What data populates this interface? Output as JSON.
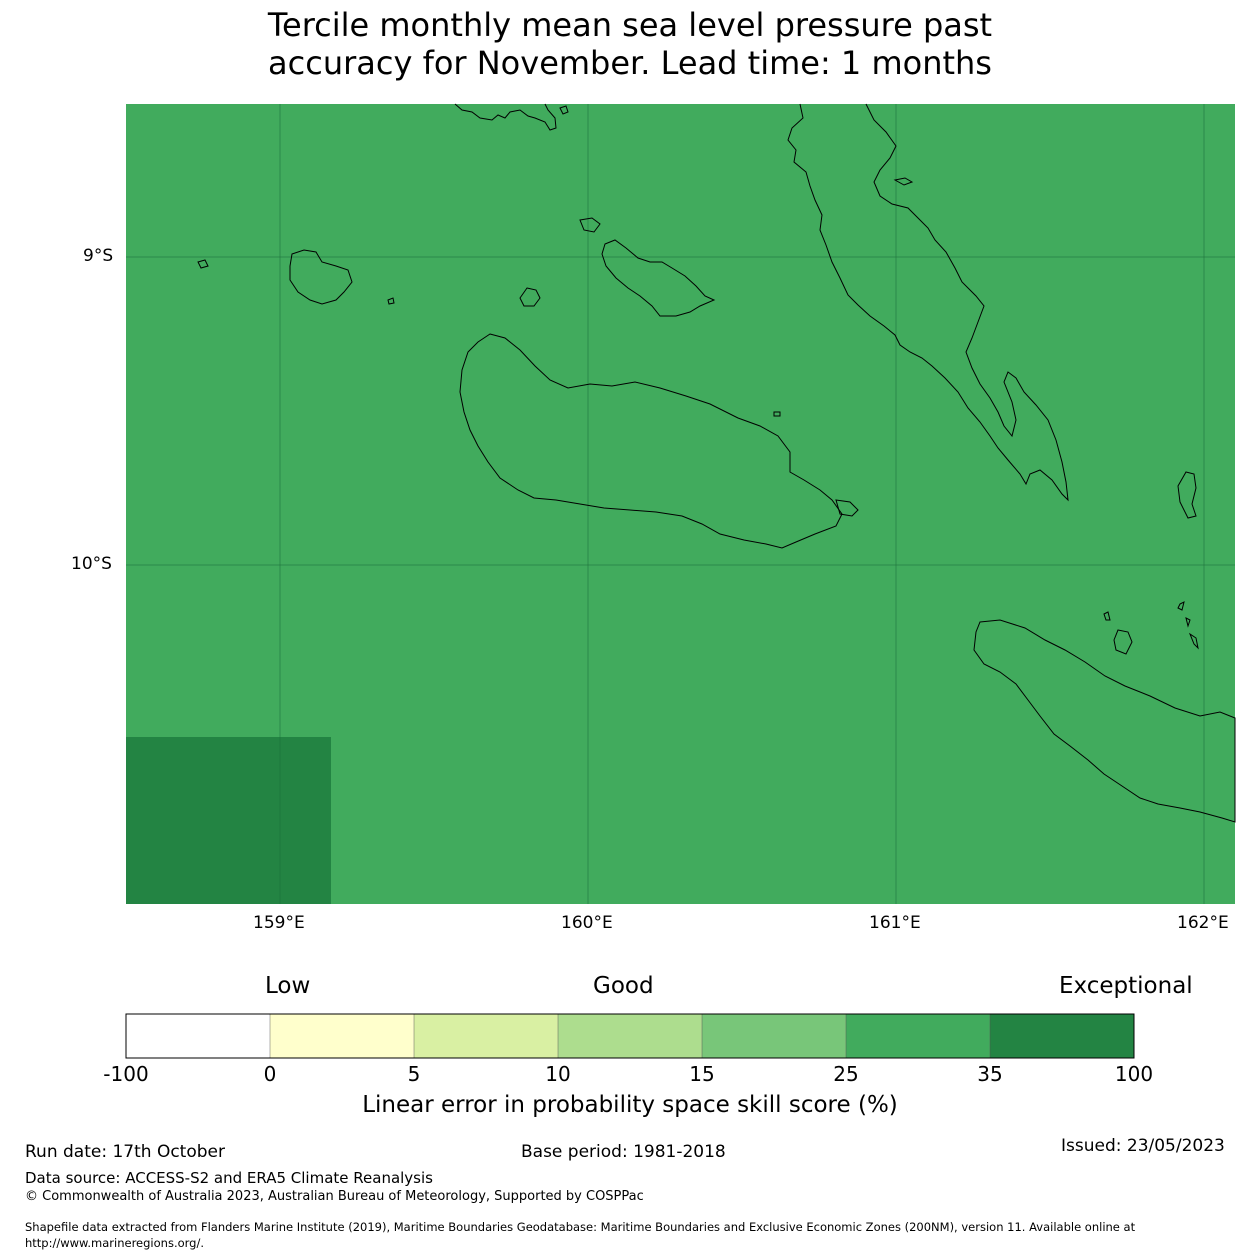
{
  "title_line1": "Tercile monthly mean sea level pressure past",
  "title_line2": "accuracy for November. Lead time: 1 months",
  "map": {
    "ocean_color": "#41ab5d",
    "high_skill_color": "#238443",
    "lon_ticks": [
      "159°E",
      "160°E",
      "161°E",
      "162°E"
    ],
    "lat_ticks": [
      "9°S",
      "10°S"
    ]
  },
  "colorbar": {
    "category_labels": [
      "Low",
      "Good",
      "Exceptional"
    ],
    "tick_labels": [
      "-100",
      "0",
      "5",
      "10",
      "15",
      "25",
      "35",
      "100"
    ],
    "colors": [
      "#ffffff",
      "#ffffcc",
      "#d9f0a3",
      "#addd8e",
      "#78c679",
      "#41ab5d",
      "#238443"
    ],
    "label": "Linear error in probability space skill score (%)"
  },
  "footer": {
    "run_date": "Run date: 17th October",
    "base_period": "Base period: 1981-2018",
    "issued": "Issued: 23/05/2023",
    "data_source": "Data source: ACCESS-S2 and ERA5 Climate Reanalysis",
    "copyright": "© Commonwealth of Australia 2023, Australian Bureau of Meteorology, Supported by COSPPac",
    "shapefile_line1": "Shapefile data extracted from Flanders Marine Institute (2019), Maritime Boundaries Geodatabase: Maritime Boundaries and Exclusive Economic Zones (200NM), version 11. Available online at",
    "shapefile_line2": "http://www.marineregions.org/."
  }
}
